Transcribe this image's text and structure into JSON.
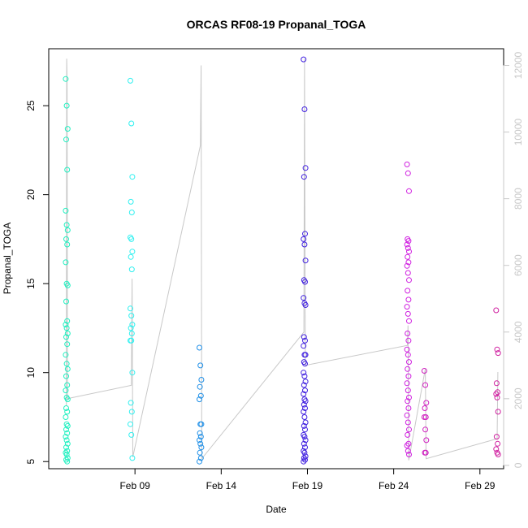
{
  "chart_data": {
    "type": "scatter",
    "title": "ORCAS RF08-19 Propanal_TOGA",
    "xlabel": "Date",
    "ylabel": "Propanal_TOGA",
    "xlim": [
      "2016-02-04T00:00",
      "2016-03-01T09:00"
    ],
    "ylim": [
      4.6,
      28.2
    ],
    "y2lim": [
      -100,
      12500
    ],
    "grid": false,
    "legend": "none",
    "x_ticks": [
      {
        "date": "2016-02-09",
        "label": "Feb 09"
      },
      {
        "date": "2016-02-14",
        "label": "Feb 14"
      },
      {
        "date": "2016-02-19",
        "label": "Feb 19"
      },
      {
        "date": "2016-02-24",
        "label": "Feb 24"
      },
      {
        "date": "2016-02-29",
        "label": "Feb 29"
      }
    ],
    "y_ticks": [
      5,
      10,
      15,
      20,
      25
    ],
    "y2_ticks": [
      0,
      2000,
      4000,
      6000,
      8000,
      10000,
      12000
    ],
    "series": [
      {
        "color": "#20f0c0",
        "date": "2016-02-05T01:00",
        "values": [
          26.5,
          25.0,
          23.7,
          23.1,
          21.4,
          19.1,
          18.3,
          18.0,
          17.5,
          17.2,
          16.2,
          15.0,
          14.9,
          14.0,
          12.9,
          12.7,
          12.5,
          12.2,
          12.0,
          11.6,
          11.0,
          10.5,
          10.2,
          9.8,
          9.3,
          9.0,
          8.6,
          8.5,
          8.0,
          7.8,
          7.5,
          7.1,
          7.0,
          6.8,
          6.6,
          6.4,
          6.2,
          6.0,
          5.8,
          5.6,
          5.5,
          5.4,
          5.2,
          5.1,
          5.0
        ]
      },
      {
        "color": "#30f0f0",
        "date": "2016-02-08T19:00",
        "values": [
          26.4,
          24.0,
          21.0,
          19.6,
          19.0,
          17.6,
          17.5,
          16.8,
          16.5,
          15.8,
          13.6,
          13.2,
          12.7,
          12.5,
          12.2,
          11.8,
          11.8,
          10.0,
          8.3,
          7.8,
          7.1,
          6.5,
          5.2
        ]
      },
      {
        "color": "#2090e8",
        "date": "2016-02-12T19:00",
        "values": [
          11.4,
          10.4,
          9.6,
          9.2,
          8.7,
          8.5,
          7.1,
          7.1,
          6.6,
          6.4,
          6.2,
          6.0,
          5.8,
          5.5,
          5.2,
          5.0
        ]
      },
      {
        "color": "#4020e0",
        "date": "2016-02-18T20:00",
        "values": [
          27.6,
          24.8,
          21.5,
          21.0,
          17.8,
          17.5,
          17.2,
          16.3,
          15.2,
          15.1,
          14.2,
          13.9,
          13.8,
          12.0,
          11.8,
          11.5,
          11.0,
          11.0,
          10.6,
          10.5,
          10.0,
          9.8,
          9.5,
          9.3,
          9.0,
          8.8,
          8.5,
          8.4,
          8.2,
          8.0,
          7.8,
          7.5,
          7.2,
          7.0,
          6.8,
          6.5,
          6.4,
          6.2,
          6.0,
          5.8,
          5.6,
          5.5,
          5.3,
          5.2,
          5.1,
          5.0
        ]
      },
      {
        "color": "#d020e0",
        "date": "2016-02-24T20:00",
        "values": [
          21.7,
          21.2,
          20.2,
          17.5,
          17.4,
          17.2,
          17.0,
          16.8,
          16.5,
          16.2,
          16.0,
          15.6,
          15.2,
          14.6,
          14.1,
          13.7,
          13.3,
          12.9,
          12.2,
          11.8,
          11.3,
          11.0,
          10.6,
          10.2,
          9.8,
          9.4,
          9.0,
          8.6,
          8.4,
          8.0,
          7.6,
          7.2,
          6.8,
          6.5,
          6.0,
          5.9,
          5.6,
          5.4
        ]
      },
      {
        "color": "#d020c0",
        "date": "2016-02-25T20:00",
        "values": [
          10.1,
          9.3,
          8.3,
          8.0,
          7.5,
          7.5,
          6.8,
          6.2,
          5.5,
          5.5
        ]
      },
      {
        "color": "#d020a0",
        "date": "2016-03-01T00:00",
        "values": [
          13.5,
          11.3,
          11.1,
          9.4,
          8.9,
          8.8,
          8.6,
          7.8,
          6.4,
          6.0,
          5.7,
          5.5,
          5.4
        ]
      }
    ],
    "secondary_line": {
      "color": "#c8c8c8",
      "points": [
        {
          "date": "2016-02-05T00:30",
          "y2": 1800
        },
        {
          "date": "2016-02-05T01:00",
          "y2": 12200
        },
        {
          "date": "2016-02-05T01:30",
          "y2": 11500
        },
        {
          "date": "2016-02-05T02:00",
          "y2": 2000
        },
        {
          "date": "2016-02-08T19:00",
          "y2": 2400
        },
        {
          "date": "2016-02-08T20:00",
          "y2": 5600
        },
        {
          "date": "2016-02-08T21:00",
          "y2": 250
        },
        {
          "date": "2016-02-12T19:00",
          "y2": 9600
        },
        {
          "date": "2016-02-12T20:00",
          "y2": 12000
        },
        {
          "date": "2016-02-12T21:00",
          "y2": 200
        },
        {
          "date": "2016-02-18T19:00",
          "y2": 4000
        },
        {
          "date": "2016-02-18T20:00",
          "y2": 12200
        },
        {
          "date": "2016-02-18T21:00",
          "y2": 3000
        },
        {
          "date": "2016-02-24T19:00",
          "y2": 3600
        },
        {
          "date": "2016-02-24T20:00",
          "y2": 4200
        },
        {
          "date": "2016-02-24T21:00",
          "y2": 150
        },
        {
          "date": "2016-02-25T20:00",
          "y2": 2900
        },
        {
          "date": "2016-02-25T21:00",
          "y2": 200
        },
        {
          "date": "2016-03-01T00:00",
          "y2": 800
        },
        {
          "date": "2016-03-01T01:00",
          "y2": 2800
        }
      ]
    }
  }
}
